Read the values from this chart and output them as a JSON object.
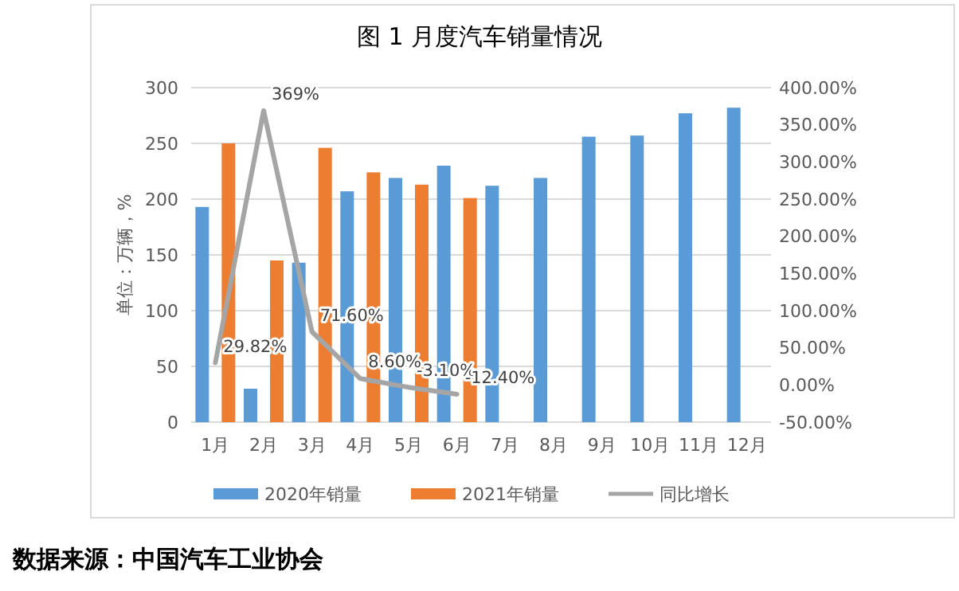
{
  "chart_data": {
    "type": "bar",
    "title": "图 1 月度汽车销量情况",
    "ylabel": "单位：万辆，%",
    "categories": [
      "1月",
      "2月",
      "3月",
      "4月",
      "5月",
      "6月",
      "7月",
      "8月",
      "9月",
      "10月",
      "11月",
      "12月"
    ],
    "series": [
      {
        "name": "2020年销量",
        "color": "#5b9bd5",
        "values": [
          193,
          30,
          143,
          207,
          219,
          230,
          212,
          219,
          256,
          257,
          277,
          282
        ]
      },
      {
        "name": "2021年销量",
        "color": "#ed7d31",
        "values": [
          250,
          145,
          246,
          224,
          213,
          201,
          null,
          null,
          null,
          null,
          null,
          null
        ]
      },
      {
        "name": "同比增长",
        "type": "line",
        "axis": "y2",
        "color": "#a5a5a5",
        "values": [
          29.82,
          369,
          71.6,
          8.6,
          -3.1,
          -12.4,
          null,
          null,
          null,
          null,
          null,
          null
        ],
        "value_labels": [
          "29.82%",
          "369%",
          "71.60%",
          "8.60%",
          "-3.10%",
          "-12.40%",
          null,
          null,
          null,
          null,
          null,
          null
        ]
      }
    ],
    "ylim": [
      0,
      300
    ],
    "yticks": [
      0,
      50,
      100,
      150,
      200,
      250,
      300
    ],
    "y2lim": [
      -50,
      400
    ],
    "y2ticks": [
      {
        "value": -50,
        "label": "-50.00%"
      },
      {
        "value": 0,
        "label": "0.00%"
      },
      {
        "value": 50,
        "label": "50.00%"
      },
      {
        "value": 100,
        "label": "100.00%"
      },
      {
        "value": 150,
        "label": "150.00%"
      },
      {
        "value": 200,
        "label": "200.00%"
      },
      {
        "value": 250,
        "label": "250.00%"
      },
      {
        "value": 300,
        "label": "300.00%"
      },
      {
        "value": 350,
        "label": "350.00%"
      },
      {
        "value": 400,
        "label": "400.00%"
      }
    ],
    "grid": "y",
    "legend": "bottom",
    "annotations": [
      "数据来源：中国汽车工业协会"
    ]
  }
}
